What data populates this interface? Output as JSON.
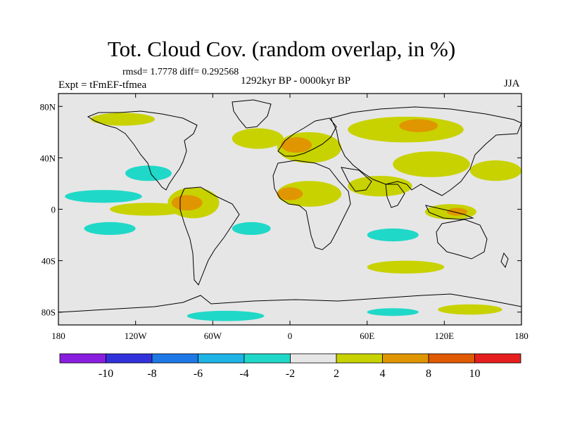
{
  "title": "Tot. Cloud Cov. (random overlap, in %)",
  "stats": "rmsd= 1.7778 diff= 0.292568",
  "period": "1292kyr BP - 0000kyr BP",
  "experiment": "Expt = tFmEF-tfmea",
  "season": "JJA",
  "map": {
    "lon_ticks": [
      "180",
      "120W",
      "60W",
      "0",
      "60E",
      "120E",
      "180"
    ],
    "lat_ticks": [
      "80N",
      "40N",
      "0",
      "40S",
      "80S"
    ],
    "lat_values": [
      80,
      40,
      0,
      -40,
      -80
    ],
    "lat_range": [
      -90,
      90
    ],
    "lon_range": [
      -180,
      180
    ],
    "background_color": "#e6e6e6",
    "coastline_color": "#000000"
  },
  "colorbar": {
    "labels": [
      "-10",
      "-8",
      "-6",
      "-4",
      "-2",
      "2",
      "4",
      "8",
      "10"
    ],
    "colors": [
      "#8a1ee0",
      "#3232dc",
      "#1e78e6",
      "#1eb4e6",
      "#20d8c8",
      "#e6e6e6",
      "#c8d200",
      "#e09600",
      "#e05a00",
      "#e61e1e"
    ]
  },
  "anomaly_regions": [
    {
      "name": "n-atlantic-pos",
      "color": "#c8d200",
      "lon": -25,
      "lat": 55,
      "rx": 20,
      "ry": 8
    },
    {
      "name": "europe-pos",
      "color": "#c8d200",
      "lon": 15,
      "lat": 48,
      "rx": 25,
      "ry": 12
    },
    {
      "name": "europe-core",
      "color": "#e09600",
      "lon": 5,
      "lat": 50,
      "rx": 12,
      "ry": 6
    },
    {
      "name": "asia-pos",
      "color": "#c8d200",
      "lon": 90,
      "lat": 62,
      "rx": 45,
      "ry": 10
    },
    {
      "name": "asia-core",
      "color": "#e09600",
      "lon": 100,
      "lat": 65,
      "rx": 15,
      "ry": 5
    },
    {
      "name": "e-asia-pos",
      "color": "#c8d200",
      "lon": 110,
      "lat": 35,
      "rx": 30,
      "ry": 10
    },
    {
      "name": "nw-pacific-pos",
      "color": "#c8d200",
      "lon": 160,
      "lat": 30,
      "rx": 20,
      "ry": 8
    },
    {
      "name": "pacific-neg",
      "color": "#20d8c8",
      "lon": -145,
      "lat": 10,
      "rx": 30,
      "ry": 5
    },
    {
      "name": "pacific-neg2",
      "color": "#20d8c8",
      "lon": -110,
      "lat": 28,
      "rx": 18,
      "ry": 6
    },
    {
      "name": "e-pacific-pos",
      "color": "#c8d200",
      "lon": -110,
      "lat": 0,
      "rx": 30,
      "ry": 5
    },
    {
      "name": "s-america-pos",
      "color": "#c8d200",
      "lon": -75,
      "lat": 5,
      "rx": 20,
      "ry": 12
    },
    {
      "name": "s-america-core",
      "color": "#e09600",
      "lon": -80,
      "lat": 5,
      "rx": 12,
      "ry": 6
    },
    {
      "name": "africa-pos",
      "color": "#c8d200",
      "lon": 15,
      "lat": 12,
      "rx": 25,
      "ry": 10
    },
    {
      "name": "africa-core",
      "color": "#e09600",
      "lon": 0,
      "lat": 12,
      "rx": 10,
      "ry": 5
    },
    {
      "name": "arabia-pos",
      "color": "#c8d200",
      "lon": 70,
      "lat": 18,
      "rx": 25,
      "ry": 8
    },
    {
      "name": "maritime-pos",
      "color": "#c8d200",
      "lon": 125,
      "lat": -2,
      "rx": 20,
      "ry": 6
    },
    {
      "name": "maritime-core",
      "color": "#e09600",
      "lon": 130,
      "lat": -2,
      "rx": 8,
      "ry": 3
    },
    {
      "name": "s-atlantic-neg",
      "color": "#20d8c8",
      "lon": -30,
      "lat": -15,
      "rx": 15,
      "ry": 5
    },
    {
      "name": "indian-neg",
      "color": "#20d8c8",
      "lon": 80,
      "lat": -20,
      "rx": 20,
      "ry": 5
    },
    {
      "name": "s-pacific-neg",
      "color": "#20d8c8",
      "lon": -140,
      "lat": -15,
      "rx": 20,
      "ry": 5
    },
    {
      "name": "s-ocean-pos",
      "color": "#c8d200",
      "lon": 90,
      "lat": -45,
      "rx": 30,
      "ry": 5
    },
    {
      "name": "antarctic-neg",
      "color": "#20d8c8",
      "lon": -50,
      "lat": -83,
      "rx": 30,
      "ry": 4
    },
    {
      "name": "antarctic-neg2",
      "color": "#20d8c8",
      "lon": 80,
      "lat": -80,
      "rx": 20,
      "ry": 3
    },
    {
      "name": "antarctic-pos",
      "color": "#c8d200",
      "lon": 140,
      "lat": -78,
      "rx": 25,
      "ry": 4
    },
    {
      "name": "arctic-pos",
      "color": "#c8d200",
      "lon": -130,
      "lat": 70,
      "rx": 25,
      "ry": 5
    }
  ]
}
